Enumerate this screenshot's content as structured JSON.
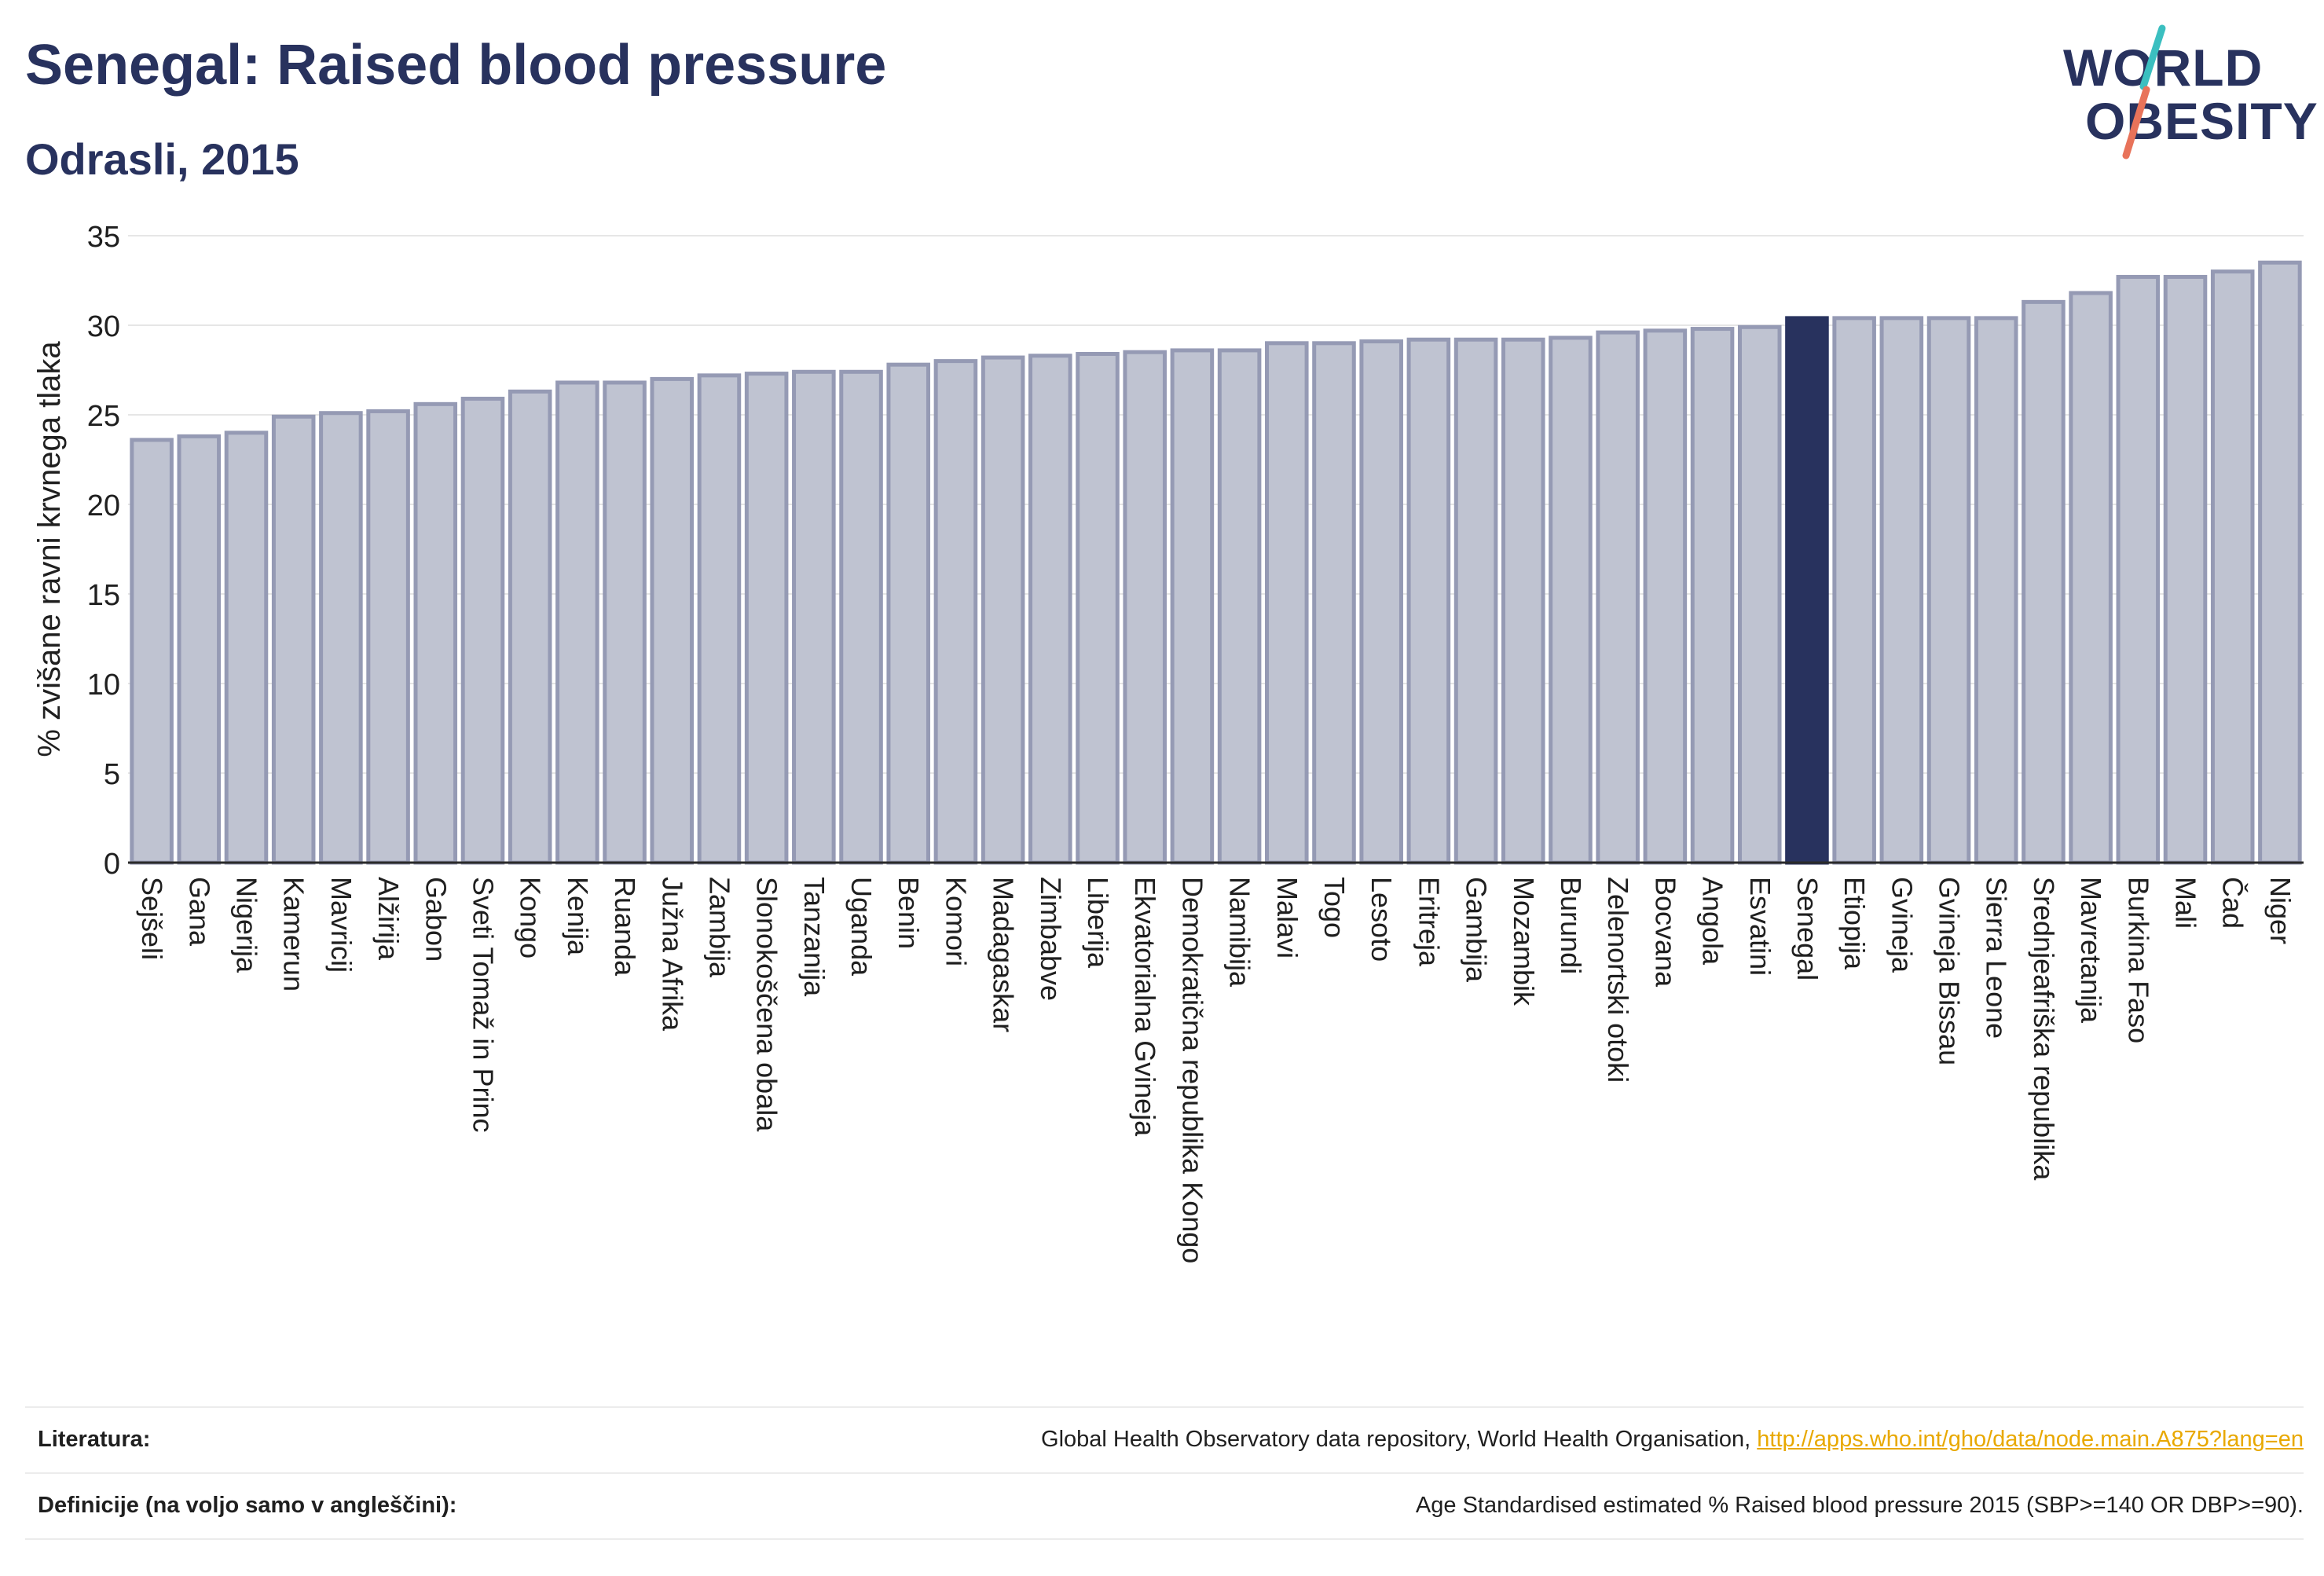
{
  "header": {
    "title": "Senegal: Raised blood pressure",
    "subtitle": "Odrasli, 2015"
  },
  "logo": {
    "line1": "WORLD",
    "line2": "OBESITY",
    "accent_colors": [
      "#3bbfc0",
      "#e8735a"
    ]
  },
  "colors": {
    "bar": "#bfc3d1",
    "bar_border": "#959ab4",
    "highlight": "#28325e",
    "axis_text": "#1f1f1f",
    "grid": "#e6e6e6"
  },
  "chart_data": {
    "type": "bar",
    "ylabel": "% zvišane ravni krvnega tlaka",
    "ylim": [
      0,
      35
    ],
    "yticks": [
      0,
      5,
      10,
      15,
      20,
      25,
      30,
      35
    ],
    "grid": true,
    "highlight": "Senegal",
    "categories": [
      "Sejšeli",
      "Gana",
      "Nigerija",
      "Kamerun",
      "Mavricij",
      "Alžirija",
      "Gabon",
      "Sveti Tomaž in Princ",
      "Kongo",
      "Kenija",
      "Ruanda",
      "Južna Afrika",
      "Zambija",
      "Slonokoščena obala",
      "Tanzanija",
      "Uganda",
      "Benin",
      "Komori",
      "Madagaskar",
      "Zimbabve",
      "Liberija",
      "Ekvatorialna Gvineja",
      "Demokratična republika Kongo",
      "Namibija",
      "Malavi",
      "Togo",
      "Lesoto",
      "Eritreja",
      "Gambija",
      "Mozambik",
      "Burundi",
      "Zelenortski otoki",
      "Bocvana",
      "Angola",
      "Esvatini",
      "Senegal",
      "Etiopija",
      "Gvineja",
      "Gvineja Bissau",
      "Sierra Leone",
      "Srednjeafriška republika",
      "Mavretanija",
      "Burkina Faso",
      "Mali",
      "Čad",
      "Niger"
    ],
    "values": [
      23.6,
      23.8,
      24.0,
      24.9,
      25.1,
      25.2,
      25.6,
      25.9,
      26.3,
      26.8,
      26.8,
      27.0,
      27.2,
      27.3,
      27.4,
      27.4,
      27.8,
      28.0,
      28.2,
      28.3,
      28.4,
      28.5,
      28.6,
      28.6,
      29.0,
      29.0,
      29.1,
      29.2,
      29.2,
      29.2,
      29.3,
      29.6,
      29.7,
      29.8,
      29.9,
      30.4,
      30.4,
      30.4,
      30.4,
      30.4,
      31.3,
      31.8,
      32.7,
      32.7,
      33.0,
      33.5
    ]
  },
  "references": {
    "literature_label": "Literatura:",
    "literature_text": "Global Health Observatory data repository, World Health Organisation, ",
    "literature_link": "http://apps.who.int/gho/data/node.main.A875?lang=en",
    "definition_label": "Definicije (na voljo samo v angleščini):",
    "definition_text": "Age Standardised estimated % Raised blood pressure 2015 (SBP>=140 OR DBP>=90)."
  }
}
